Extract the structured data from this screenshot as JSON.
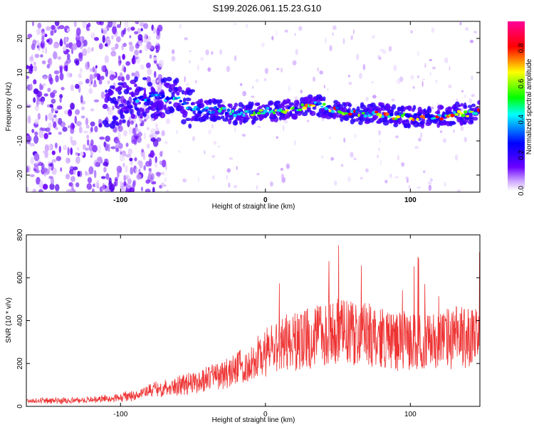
{
  "title": "S199.2026.061.15.23.G10",
  "chart_data": [
    {
      "type": "heatmap",
      "xlabel": "Height of straight line (km)",
      "ylabel": "Frequency (Hz)",
      "xlim": [
        -165,
        148
      ],
      "ylim": [
        -25,
        25
      ],
      "xticks": [
        "-100",
        "0",
        "100"
      ],
      "yticks": [
        "-20",
        "-10",
        "0",
        "10",
        "20"
      ],
      "colorbar": {
        "label": "Normalized spectral amplitude",
        "range": [
          0.0,
          0.95
        ],
        "ticks": [
          "0.0",
          "0.2",
          "0.4",
          "0.6",
          "0.8"
        ],
        "colors": [
          "#ffffff",
          "#6a00ff",
          "#0000ff",
          "#00ffff",
          "#00ff00",
          "#ffff00",
          "#ff0000",
          "#ff0099"
        ]
      },
      "ridge": {
        "x": [
          -110,
          -90,
          -75,
          -60,
          -50,
          -40,
          -30,
          -20,
          -10,
          0,
          10,
          20,
          30,
          40,
          50,
          60,
          70,
          80,
          90,
          100,
          110,
          120,
          130,
          140,
          148
        ],
        "freq": [
          0,
          2,
          3,
          2,
          -1,
          -1,
          -1,
          -2,
          -2,
          -1,
          -1,
          -1,
          1,
          0,
          -1,
          -2,
          -2,
          -2,
          -3,
          -3,
          -3,
          -3,
          -2,
          -2,
          -1
        ]
      }
    },
    {
      "type": "line",
      "xlabel": "Height of straight line (km)",
      "ylabel": "SNR (10 * v/v)",
      "xlim": [
        -165,
        148
      ],
      "ylim": [
        0,
        800
      ],
      "xticks": [
        "-100",
        "0",
        "100"
      ],
      "yticks": [
        "0",
        "200",
        "400",
        "600",
        "800"
      ],
      "color": "#ee3333",
      "series": [
        {
          "name": "SNR",
          "x": [
            -165,
            -140,
            -120,
            -100,
            -90,
            -80,
            -70,
            -60,
            -50,
            -40,
            -30,
            -20,
            -10,
            0,
            10,
            20,
            30,
            40,
            50,
            60,
            70,
            80,
            90,
            100,
            110,
            120,
            130,
            140,
            148
          ],
          "y": [
            25,
            28,
            30,
            40,
            55,
            70,
            90,
            100,
            110,
            130,
            150,
            175,
            200,
            250,
            280,
            300,
            320,
            340,
            350,
            340,
            330,
            320,
            310,
            300,
            300,
            310,
            320,
            330,
            310
          ]
        }
      ]
    }
  ]
}
